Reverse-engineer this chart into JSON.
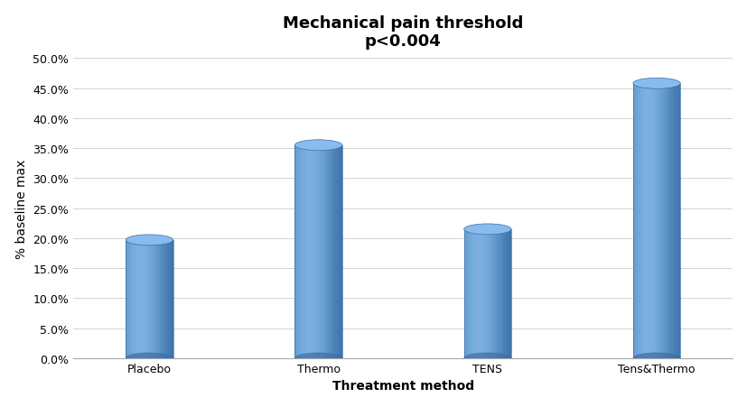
{
  "categories": [
    "Placebo",
    "Thermo",
    "TENS",
    "Tens&Thermo"
  ],
  "values": [
    0.197,
    0.355,
    0.215,
    0.458
  ],
  "bar_color_left": "#4a7fc0",
  "bar_color_mid": "#6699cc",
  "bar_color_right": "#7aafe0",
  "bar_color_top": "#88bbee",
  "bar_color_dark": "#3a6fa8",
  "title_line1": "Mechanical pain threshold",
  "title_line2": "p<0.004",
  "xlabel": "Threatment method",
  "ylabel": "% baseline max",
  "ylim": [
    0,
    0.5
  ],
  "yticks": [
    0.0,
    0.05,
    0.1,
    0.15,
    0.2,
    0.25,
    0.3,
    0.35,
    0.4,
    0.45,
    0.5
  ],
  "ytick_labels": [
    "0.0%",
    "5.0%",
    "10.0%",
    "15.0%",
    "20.0%",
    "25.0%",
    "30.0%",
    "35.0%",
    "40.0%",
    "45.0%",
    "50.0%"
  ],
  "background_color": "#ffffff",
  "plot_bg_color": "#ffffff",
  "title_fontsize": 13,
  "axis_label_fontsize": 10,
  "tick_fontsize": 9,
  "bar_width": 0.28,
  "bar_positions": [
    0.15,
    0.38,
    0.61,
    0.84
  ]
}
